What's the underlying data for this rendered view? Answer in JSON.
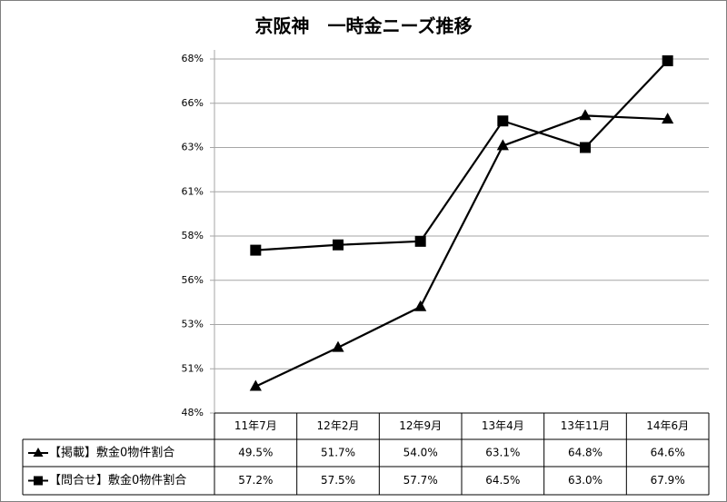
{
  "chart_data": {
    "type": "line",
    "title": "京阪神　一時金ニーズ推移",
    "categories": [
      "11年7月",
      "12年2月",
      "12年9月",
      "13年4月",
      "13年11月",
      "14年6月"
    ],
    "series": [
      {
        "name": "【掲載】敷金0物件割合",
        "color": "#000000",
        "marker": "triangle",
        "values": [
          49.5,
          51.7,
          54.0,
          63.1,
          64.8,
          64.6
        ],
        "value_labels": [
          "49.5%",
          "51.7%",
          "54.0%",
          "63.1%",
          "64.8%",
          "64.6%"
        ]
      },
      {
        "name": "【問合せ】敷金0物件割合",
        "color": "#000000",
        "marker": "square",
        "values": [
          57.2,
          57.5,
          57.7,
          64.5,
          63.0,
          67.9
        ],
        "value_labels": [
          "57.2%",
          "57.5%",
          "57.7%",
          "64.5%",
          "63.0%",
          "67.9%"
        ]
      }
    ],
    "ylim": [
      48,
      68
    ],
    "yticks": [
      {
        "value": 48,
        "label": "48%"
      },
      {
        "value": 50.5,
        "label": "51%"
      },
      {
        "value": 53,
        "label": "53%"
      },
      {
        "value": 55.5,
        "label": "56%"
      },
      {
        "value": 58,
        "label": "58%"
      },
      {
        "value": 60.5,
        "label": "61%"
      },
      {
        "value": 63,
        "label": "63%"
      },
      {
        "value": 65.5,
        "label": "66%"
      },
      {
        "value": 68,
        "label": "68%"
      }
    ],
    "grid": true
  }
}
